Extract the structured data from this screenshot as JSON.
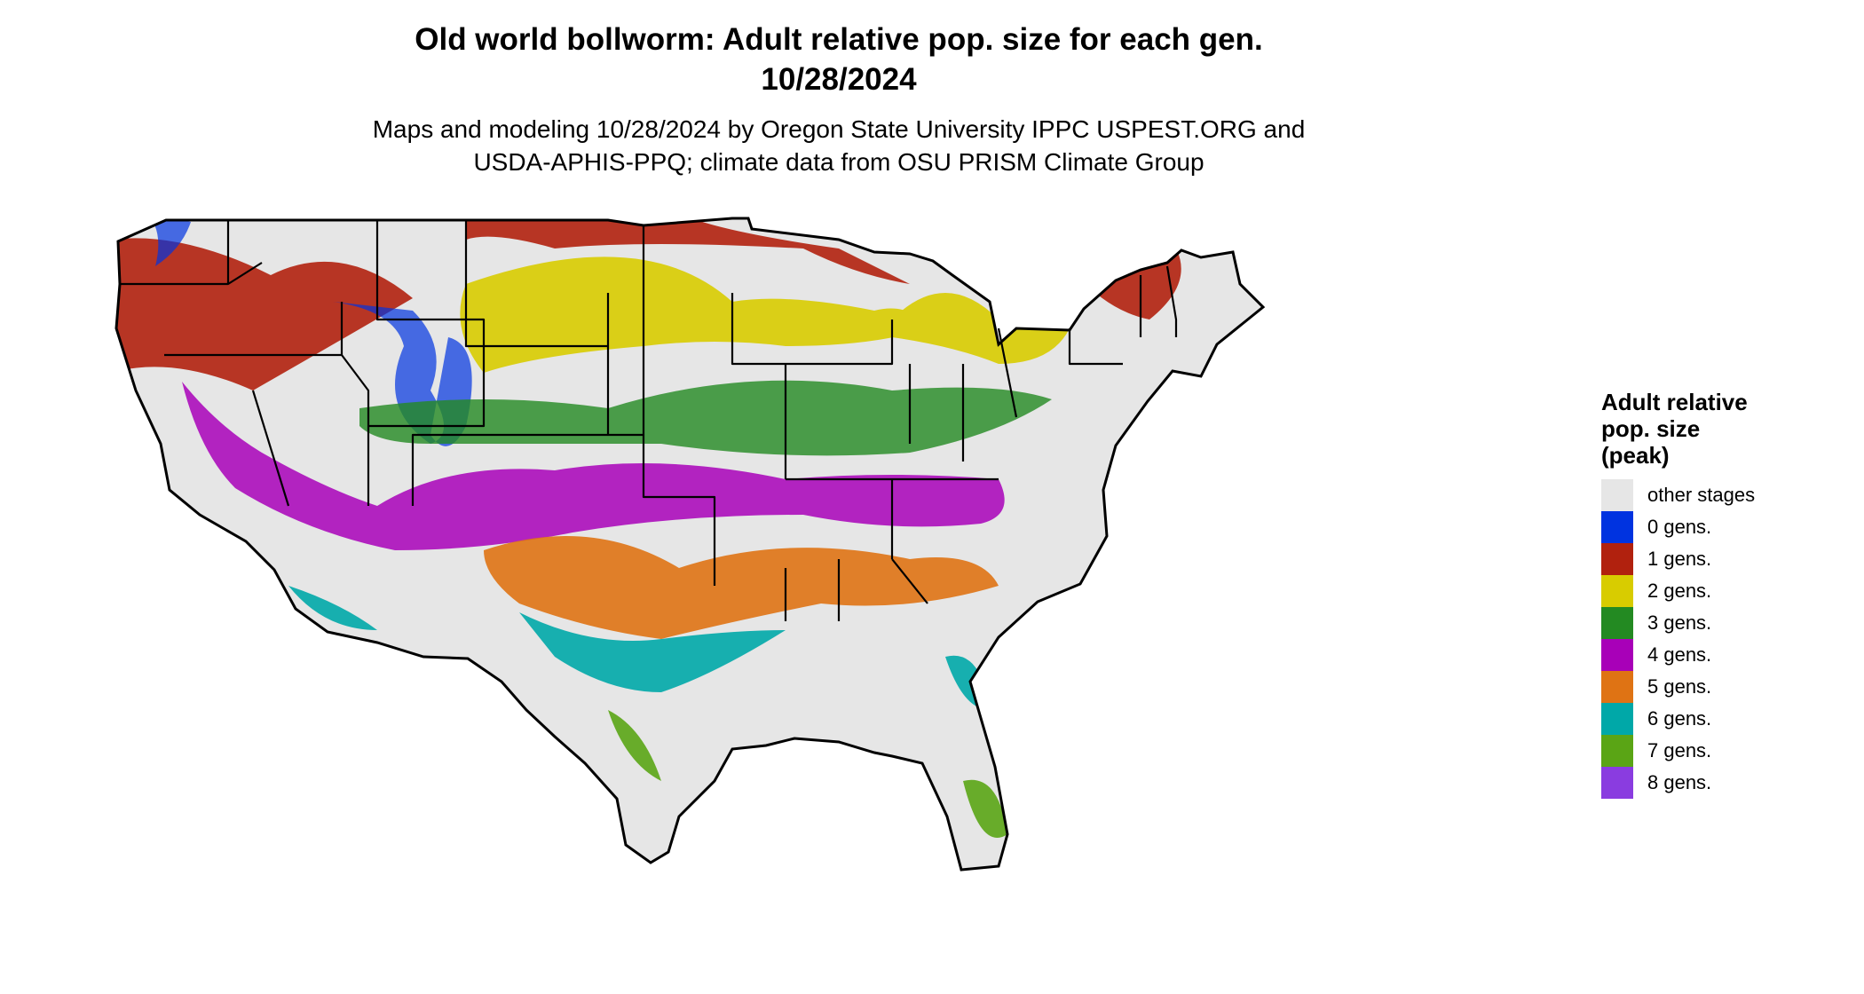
{
  "title_line1": "Old world bollworm: Adult relative pop. size for each gen.",
  "title_line2": "10/28/2024",
  "subtitle_line1": "Maps and modeling 10/28/2024 by Oregon State University IPPC USPEST.ORG and",
  "subtitle_line2": "USDA-APHIS-PPQ; climate data from OSU PRISM Climate Group",
  "legend": {
    "title_lines": [
      "Adult relative",
      "pop. size",
      "(peak)"
    ],
    "items": [
      {
        "label": "other stages",
        "color": "#e6e6e6"
      },
      {
        "label": "0 gens.",
        "color": "#0033e0"
      },
      {
        "label": "1 gens.",
        "color": "#b1210e"
      },
      {
        "label": "2 gens.",
        "color": "#d8cc00"
      },
      {
        "label": "3 gens.",
        "color": "#238a22"
      },
      {
        "label": "4 gens.",
        "color": "#a800b8"
      },
      {
        "label": "5 gens.",
        "color": "#df7314"
      },
      {
        "label": "6 gens.",
        "color": "#00a8a8"
      },
      {
        "label": "7 gens.",
        "color": "#5aa515"
      },
      {
        "label": "8 gens.",
        "color": "#8a3ce0"
      }
    ]
  },
  "map_regions": [
    {
      "name": "pacific-northwest-band",
      "gens": "1 gens.",
      "color": "#b1210e"
    },
    {
      "name": "rocky-mountain-highlands",
      "gens": "0 gens.",
      "color": "#0033e0"
    },
    {
      "name": "northern-plains-band",
      "gens": "2 gens.",
      "color": "#d8cc00"
    },
    {
      "name": "upper-midwest-band",
      "gens": "1 gens.",
      "color": "#b1210e"
    },
    {
      "name": "central-band",
      "gens": "3 gens.",
      "color": "#238a22"
    },
    {
      "name": "southern-plains-band",
      "gens": "4 gens.",
      "color": "#a800b8"
    },
    {
      "name": "gulf-states-band",
      "gens": "5 gens.",
      "color": "#df7314"
    },
    {
      "name": "gulf-coast-band",
      "gens": "6 gens.",
      "color": "#00a8a8"
    },
    {
      "name": "south-florida-texas-tip",
      "gens": "7 gens.",
      "color": "#5aa515"
    }
  ]
}
